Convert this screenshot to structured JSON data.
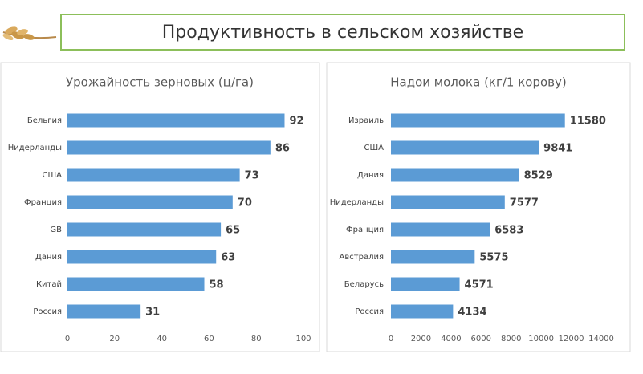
{
  "header": {
    "title": "Продуктивность в сельском хозяйстве"
  },
  "chart_data": [
    {
      "type": "bar",
      "orientation": "horizontal",
      "title": "Урожайность зерновых (ц/га)",
      "categories": [
        "Бельгия",
        "Нидерланды",
        "США",
        "Франция",
        "GB",
        "Дания",
        "Китай",
        "Россия"
      ],
      "values": [
        92,
        86,
        73,
        70,
        65,
        63,
        58,
        31
      ],
      "color": "#5b9bd5",
      "xlim": [
        0,
        100
      ],
      "xticks": [
        0,
        20,
        40,
        60,
        80,
        100
      ],
      "grid": false
    },
    {
      "type": "bar",
      "orientation": "horizontal",
      "title": "Надои молока (кг/1 корову)",
      "categories": [
        "Израиль",
        "США",
        "Дания",
        "Нидерланды",
        "Франция",
        "Австралия",
        "Беларусь",
        "Россия"
      ],
      "values": [
        11580,
        9841,
        8529,
        7577,
        6583,
        5575,
        4571,
        4134
      ],
      "color": "#5b9bd5",
      "xlim": [
        0,
        14000
      ],
      "xticks": [
        0,
        2000,
        4000,
        6000,
        8000,
        10000,
        12000,
        14000
      ],
      "grid": false
    }
  ]
}
